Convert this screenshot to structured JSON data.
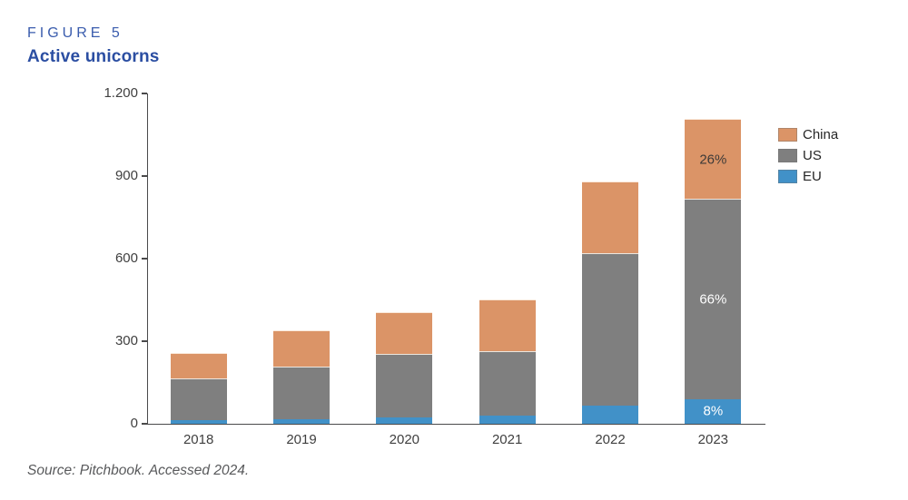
{
  "figure": {
    "label": "FIGURE 5",
    "title": "Active unicorns"
  },
  "source": "Source: Pitchbook. Accessed 2024.",
  "colors": {
    "china": "#db9467",
    "us": "#7f7f7f",
    "eu": "#4191c8",
    "axis": "#4a4a4b",
    "title_blue": "#2b4ea2"
  },
  "legend": {
    "items": [
      {
        "name": "China",
        "color": "#db9467"
      },
      {
        "name": "US",
        "color": "#7f7f7f"
      },
      {
        "name": "EU",
        "color": "#4191c8"
      }
    ]
  },
  "chart_data": {
    "type": "bar",
    "stacked": true,
    "title": "Active unicorns",
    "xlabel": "",
    "ylabel": "",
    "categories": [
      "2018",
      "2019",
      "2020",
      "2021",
      "2022",
      "2023"
    ],
    "series": [
      {
        "name": "EU",
        "color": "#4191c8",
        "values": [
          12,
          18,
          22,
          30,
          65,
          90
        ],
        "labels": [
          "",
          "",
          "",
          "",
          "",
          "8%"
        ],
        "label_color": "#ffffff"
      },
      {
        "name": "US",
        "color": "#7f7f7f",
        "values": [
          150,
          185,
          228,
          230,
          550,
          725
        ],
        "labels": [
          "",
          "",
          "",
          "",
          "",
          "66%"
        ],
        "label_color": "#ffffff"
      },
      {
        "name": "China",
        "color": "#db9467",
        "values": [
          88,
          130,
          150,
          185,
          260,
          285
        ],
        "labels": [
          "",
          "",
          "",
          "",
          "",
          "26%"
        ],
        "label_color": "#3d3a38"
      }
    ],
    "totals": [
      250,
      333,
      400,
      445,
      875,
      1100
    ],
    "ylim": [
      0,
      1200
    ],
    "yticks": [
      0,
      300,
      600,
      900,
      1200
    ],
    "ytick_labels": [
      "0",
      "300",
      "600",
      "900",
      "1.200"
    ],
    "grid": false,
    "legend_position": "right"
  }
}
